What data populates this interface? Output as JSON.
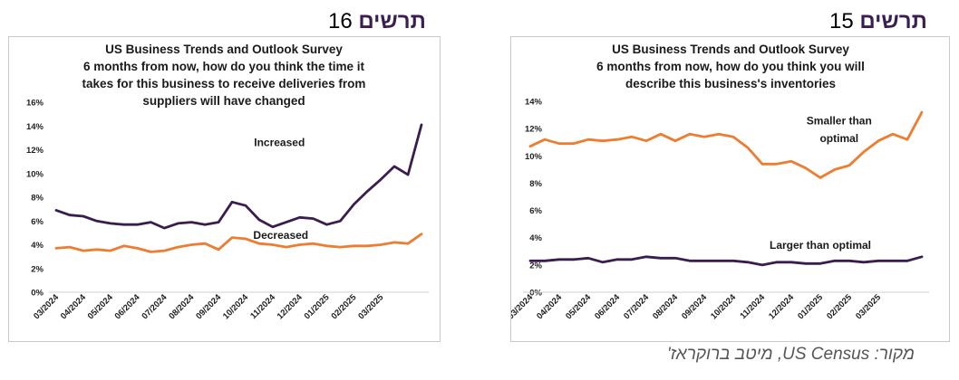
{
  "headings": {
    "left": {
      "word": "תרשים",
      "number": "16"
    },
    "right": {
      "word": "תרשים",
      "number": "15"
    }
  },
  "source_text": "מקור: US Census, מיטב ברוקראז'",
  "colors": {
    "purple": "#3b1c4f",
    "orange": "#ed7d31"
  },
  "chart_data": [
    {
      "type": "line",
      "title": [
        "US Business Trends and Outlook Survey",
        "6 months from now, how do you think the time it",
        "takes for this business to receive deliveries from",
        "suppliers will have changed"
      ],
      "x_ticks": [
        "03/2024",
        "04/2024",
        "05/2024",
        "06/2024",
        "07/2024",
        "08/2024",
        "09/2024",
        "10/2024",
        "11/2024",
        "12/2024",
        "01/2025",
        "02/2025",
        "03/2025"
      ],
      "y_ticks": [
        "0%",
        "2%",
        "4%",
        "6%",
        "8%",
        "10%",
        "12%",
        "14%",
        "16%"
      ],
      "ylim": [
        0,
        16
      ],
      "series": [
        {
          "name": "Increased",
          "color": "#3b1c4f",
          "values": [
            6.9,
            6.5,
            6.4,
            6.0,
            5.8,
            5.7,
            5.7,
            5.9,
            5.4,
            5.8,
            5.9,
            5.7,
            5.9,
            7.6,
            7.3,
            6.1,
            5.5,
            5.9,
            6.3,
            6.2,
            5.7,
            6.0,
            7.4,
            8.5,
            9.5,
            10.6,
            9.9,
            14.1
          ]
        },
        {
          "name": "Decreased",
          "color": "#ed7d31",
          "values": [
            3.7,
            3.8,
            3.5,
            3.6,
            3.5,
            3.9,
            3.7,
            3.4,
            3.5,
            3.8,
            4.0,
            4.1,
            3.6,
            4.6,
            4.5,
            4.1,
            4.0,
            3.8,
            4.0,
            4.1,
            3.9,
            3.8,
            3.9,
            3.9,
            4.0,
            4.2,
            4.1,
            4.9
          ]
        }
      ],
      "annotations": [
        {
          "text": "Increased",
          "x": 16.5,
          "y": 12.3
        },
        {
          "text": "Decreased",
          "x": 16.6,
          "y": 4.5
        }
      ]
    },
    {
      "type": "line",
      "title": [
        "US Business Trends and Outlook Survey",
        "6 months from now, how do you think you will",
        "describe this business's inventories"
      ],
      "x_ticks": [
        "03/2024",
        "04/2024",
        "05/2024",
        "06/2024",
        "07/2024",
        "08/2024",
        "09/2024",
        "10/2024",
        "11/2024",
        "12/2024",
        "01/2025",
        "02/2025",
        "03/2025"
      ],
      "y_ticks": [
        "0%",
        "2%",
        "4%",
        "6%",
        "8%",
        "10%",
        "12%",
        "14%"
      ],
      "ylim": [
        0,
        14
      ],
      "series": [
        {
          "name": "Smaller than optimal",
          "color": "#ed7d31",
          "values": [
            10.7,
            11.2,
            10.9,
            10.9,
            11.2,
            11.1,
            11.2,
            11.4,
            11.1,
            11.6,
            11.1,
            11.6,
            11.4,
            11.6,
            11.4,
            10.6,
            9.4,
            9.4,
            9.6,
            9.1,
            8.4,
            9.0,
            9.3,
            10.3,
            11.1,
            11.6,
            11.2,
            13.2
          ]
        },
        {
          "name": "Larger than optimal",
          "color": "#3b1c4f",
          "values": [
            2.3,
            2.3,
            2.4,
            2.4,
            2.5,
            2.2,
            2.4,
            2.4,
            2.6,
            2.5,
            2.5,
            2.3,
            2.3,
            2.3,
            2.3,
            2.2,
            2.0,
            2.2,
            2.2,
            2.1,
            2.1,
            2.3,
            2.3,
            2.2,
            2.3,
            2.3,
            2.3,
            2.6
          ]
        }
      ],
      "annotations": [
        {
          "text": "Smaller than",
          "x": 21.3,
          "y": 12.3
        },
        {
          "text": "optimal",
          "x": 21.3,
          "y": 11.0
        },
        {
          "text": "Larger than optimal",
          "x": 20.0,
          "y": 3.2
        }
      ]
    }
  ]
}
